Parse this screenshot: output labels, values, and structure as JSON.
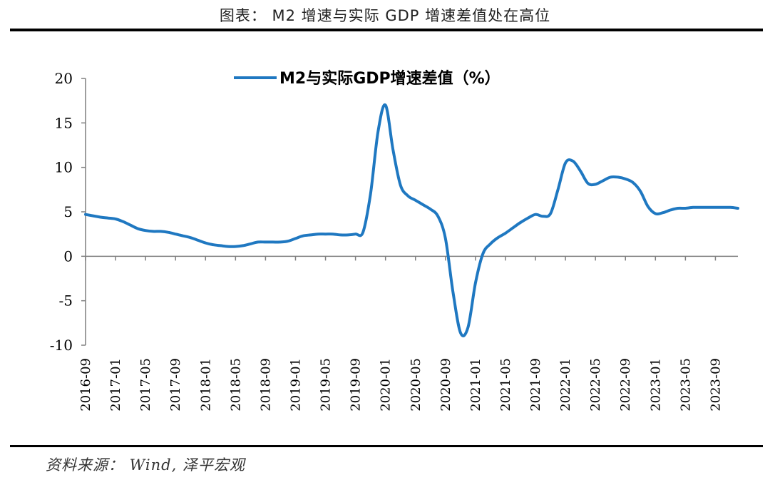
{
  "header": {
    "title": "图表： M2 增速与实际 GDP 增速差值处在高位"
  },
  "footer": {
    "source": "资料来源： Wind, 泽平宏观"
  },
  "chart_data": {
    "type": "line",
    "title": "",
    "xlabel": "",
    "ylabel": "",
    "ylim": [
      -10,
      20
    ],
    "yticks": [
      20,
      15,
      10,
      5,
      0,
      -5,
      -10
    ],
    "xticks": [
      "2016-09",
      "2017-01",
      "2017-05",
      "2017-09",
      "2018-01",
      "2018-05",
      "2018-09",
      "2019-01",
      "2019-05",
      "2019-09",
      "2020-01",
      "2020-05",
      "2020-09",
      "2021-01",
      "2021-05",
      "2021-09",
      "2022-01",
      "2022-05",
      "2022-09",
      "2023-01",
      "2023-05",
      "2023-09"
    ],
    "legend": "top-center",
    "color": "#1f78c1",
    "series": [
      {
        "name": "M2与实际GDP增速差值（%）",
        "x": [
          0,
          2,
          3,
          4,
          5,
          6,
          7,
          8,
          9,
          10,
          11,
          12,
          13,
          14,
          15,
          16,
          17,
          18,
          19,
          20,
          21,
          22,
          23,
          24,
          25,
          26,
          27,
          28,
          29,
          30,
          31,
          32,
          33,
          34,
          35,
          36,
          37,
          38,
          39,
          40,
          41,
          42,
          43,
          44,
          45,
          46,
          47,
          48,
          49,
          50,
          51,
          52,
          53,
          54,
          55,
          56,
          57,
          58,
          59,
          60,
          61,
          62,
          63,
          64,
          65,
          66,
          67,
          68,
          69,
          70,
          71,
          72,
          73,
          74,
          75,
          76,
          77,
          78,
          79,
          80,
          81,
          82,
          83,
          84,
          85,
          86,
          87
        ],
        "values": [
          4.7,
          4.4,
          4.3,
          4.2,
          3.9,
          3.5,
          3.1,
          2.9,
          2.8,
          2.8,
          2.7,
          2.5,
          2.3,
          2.1,
          1.8,
          1.5,
          1.3,
          1.2,
          1.1,
          1.1,
          1.2,
          1.4,
          1.6,
          1.6,
          1.6,
          1.6,
          1.7,
          2.0,
          2.3,
          2.4,
          2.5,
          2.5,
          2.5,
          2.4,
          2.4,
          2.5,
          2.7,
          7.0,
          14.0,
          17.0,
          12.0,
          8.0,
          6.8,
          6.3,
          5.8,
          5.3,
          4.5,
          2.0,
          -4.0,
          -8.6,
          -8.0,
          -3.0,
          0.3,
          1.4,
          2.1,
          2.6,
          3.2,
          3.8,
          4.3,
          4.7,
          4.5,
          4.8,
          7.5,
          10.5,
          10.7,
          9.6,
          8.2,
          8.1,
          8.5,
          8.9,
          8.9,
          8.7,
          8.3,
          7.3,
          5.6,
          4.8,
          4.9,
          5.2,
          5.4,
          5.4,
          5.5,
          5.5,
          5.5,
          5.5,
          5.5,
          5.5,
          5.4
        ]
      }
    ]
  }
}
